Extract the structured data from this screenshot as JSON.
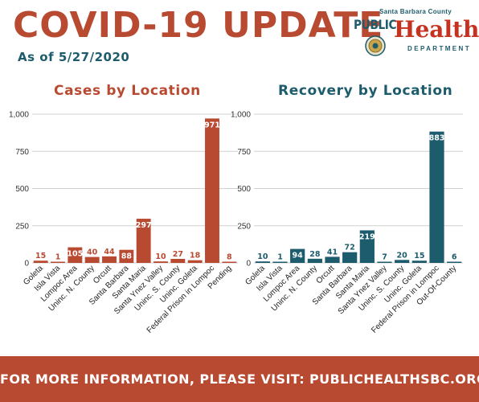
{
  "header": {
    "title": "COVID-19 UPDATE",
    "as_of": "As of 5/27/2020"
  },
  "logo": {
    "county": "Santa Barbara County",
    "public": "PUBLIC",
    "health": "Health",
    "department": "DEPARTMENT"
  },
  "colors": {
    "cases": "#b94a32",
    "recovery": "#1d5c6c",
    "grid": "#d0d0d0"
  },
  "chart_data": [
    {
      "type": "bar",
      "title": "Cases by Location",
      "categories": [
        "Goleta",
        "Isla Vista",
        "Lompoc Area",
        "Uninc. N. County",
        "Orcutt",
        "Santa Barbara",
        "Santa Maria",
        "Santa Ynez Valley",
        "Uninc. S. County",
        "Uninc. Goleta",
        "Federal Prison in Lompoc",
        "Pending"
      ],
      "values": [
        15,
        1,
        105,
        40,
        44,
        88,
        297,
        10,
        27,
        18,
        971,
        8
      ],
      "yticks": [
        "0",
        "250",
        "500",
        "750",
        "1,000"
      ],
      "ylim": [
        0,
        1000
      ],
      "grid": true,
      "data_labels": true
    },
    {
      "type": "bar",
      "title": "Recovery by Location",
      "categories": [
        "Goleta",
        "Isla Vista",
        "Lompoc Area",
        "Uninc. N. County",
        "Orcutt",
        "Santa Barbara",
        "Santa Maria",
        "Santa Ynez Valley",
        "Uninc. S. County",
        "Uninc. Goleta",
        "Federal Prison in Lompoc",
        "Out-Of-County"
      ],
      "values": [
        10,
        1,
        94,
        28,
        41,
        72,
        219,
        7,
        20,
        15,
        883,
        6
      ],
      "yticks": [
        "0",
        "250",
        "500",
        "750",
        "1,000"
      ],
      "ylim": [
        0,
        1000
      ],
      "grid": true,
      "data_labels": true
    }
  ],
  "footer": {
    "text": "FOR MORE INFORMATION, PLEASE VISIT: PUBLICHEALTHSBC.ORG"
  }
}
